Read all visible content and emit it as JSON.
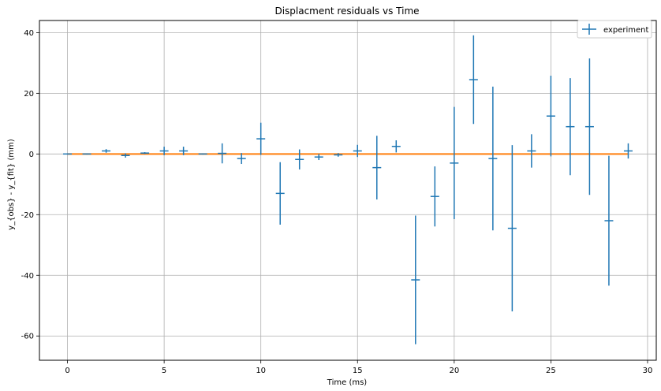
{
  "chart_data": {
    "type": "scatter",
    "title": "Displacment residuals vs Time",
    "xlabel": "Time (ms)",
    "ylabel": "y_{obs} - y_{fit} (mm)",
    "xlim": [
      -1.45,
      30.45
    ],
    "ylim": [
      -68,
      44
    ],
    "xticks": [
      0,
      5,
      10,
      15,
      20,
      25,
      30
    ],
    "yticks": [
      -60,
      -40,
      -20,
      0,
      20,
      40
    ],
    "grid": true,
    "legend_position": "top-right",
    "colors": {
      "experiment": "#1f77b4",
      "fit": "#ff7f0e"
    },
    "series": [
      {
        "name": "experiment",
        "kind": "errorbar",
        "x": [
          0,
          1,
          2,
          3,
          4,
          5,
          6,
          7,
          8,
          9,
          10,
          11,
          12,
          13,
          14,
          15,
          16,
          17,
          18,
          19,
          20,
          21,
          22,
          23,
          24,
          25,
          26,
          27,
          28,
          29
        ],
        "y": [
          0,
          0,
          1,
          -0.5,
          0.3,
          1,
          1,
          0,
          0.2,
          -1.5,
          5,
          -13,
          -1.8,
          -1,
          -0.3,
          1,
          -4.5,
          2.5,
          -41.5,
          -14,
          -3,
          24.5,
          -1.5,
          -24.5,
          1,
          12.5,
          9,
          9,
          -22,
          1
        ],
        "yerr": [
          0.2,
          0.2,
          0.6,
          0.7,
          0.3,
          1.4,
          1.4,
          0.2,
          3.3,
          1.8,
          5.3,
          10.3,
          3.3,
          1,
          0.6,
          2,
          10.5,
          2,
          21.2,
          9.9,
          18.5,
          14.6,
          23.7,
          27.4,
          5.5,
          13.3,
          16,
          22.5,
          21.4,
          2.5
        ]
      },
      {
        "name": "",
        "kind": "line",
        "x": [
          0,
          29
        ],
        "y": [
          0,
          0
        ]
      }
    ]
  }
}
